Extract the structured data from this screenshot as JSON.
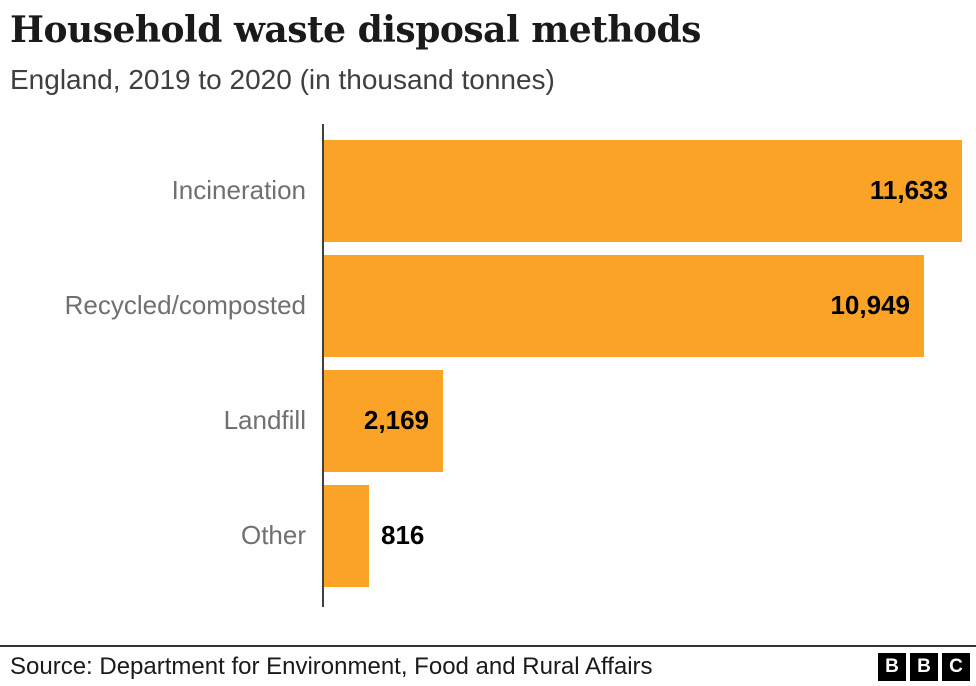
{
  "header": {
    "title": "Household waste disposal methods",
    "subtitle": "England, 2019 to 2020 (in thousand tonnes)"
  },
  "chart_data": {
    "type": "bar",
    "orientation": "horizontal",
    "title": "Household waste disposal methods",
    "subtitle": "England, 2019 to 2020 (in thousand tonnes)",
    "unit": "thousand tonnes",
    "categories": [
      "Incineration",
      "Recycled/composted",
      "Landfill",
      "Other"
    ],
    "values": [
      11633,
      10949,
      2169,
      816
    ],
    "value_labels": [
      "11,633",
      "10,949",
      "2,169",
      "816"
    ],
    "value_label_positions": [
      "inside",
      "inside",
      "inside",
      "outside"
    ],
    "xlim": [
      0,
      11633
    ],
    "grid": "off",
    "legend": "none",
    "bar_color": "#FAA326",
    "category_label_color": "#707073",
    "value_label_color": "#000000",
    "axis_color": "#404040"
  },
  "footer": {
    "source": "Source: Department for Environment, Food and Rural Affairs",
    "logo_letters": [
      "B",
      "B",
      "C"
    ]
  }
}
